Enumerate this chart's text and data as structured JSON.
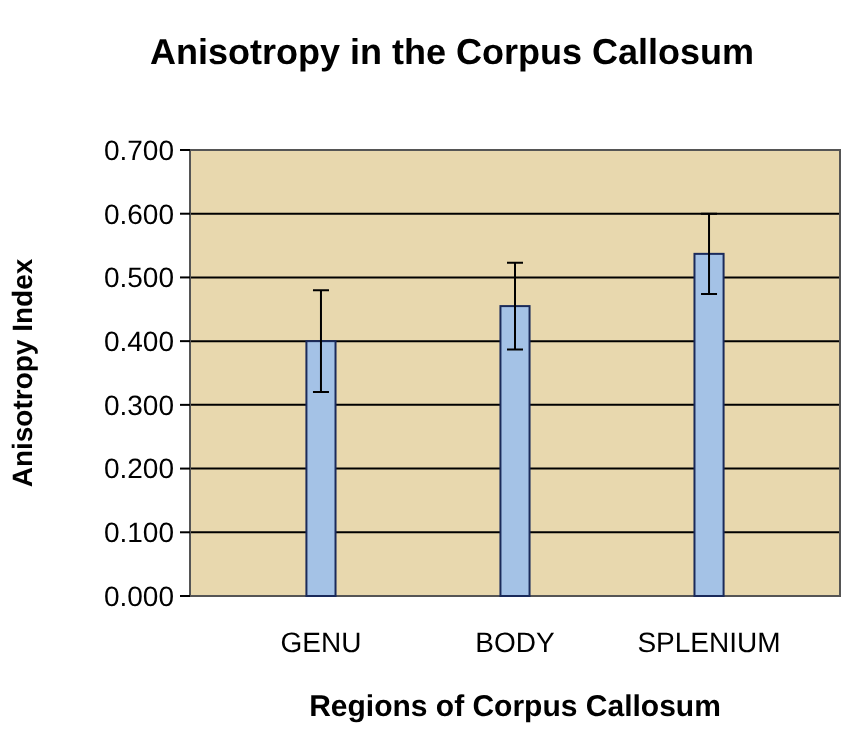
{
  "chart_data": {
    "type": "bar",
    "title": "Anisotropy in the Corpus Callosum",
    "xlabel": "Regions of Corpus Callosum",
    "ylabel": "Anisotropy Index",
    "categories": [
      "GENU",
      "BODY",
      "SPLENIUM"
    ],
    "values": [
      0.4,
      0.455,
      0.537
    ],
    "errors": [
      0.08,
      0.068,
      0.063
    ],
    "color": "#a4c2e6",
    "ylim": [
      0,
      0.7
    ],
    "yticks": [
      {
        "value": 0,
        "label": "0.000"
      },
      {
        "value": 0.1,
        "label": "0.100"
      },
      {
        "value": 0.2,
        "label": "0.200"
      },
      {
        "value": 0.3,
        "label": "0.300"
      },
      {
        "value": 0.4,
        "label": "0.400"
      },
      {
        "value": 0.5,
        "label": "0.500"
      },
      {
        "value": 0.6,
        "label": "0.600"
      },
      {
        "value": 0.7,
        "label": "0.700"
      }
    ],
    "grid": "y"
  }
}
